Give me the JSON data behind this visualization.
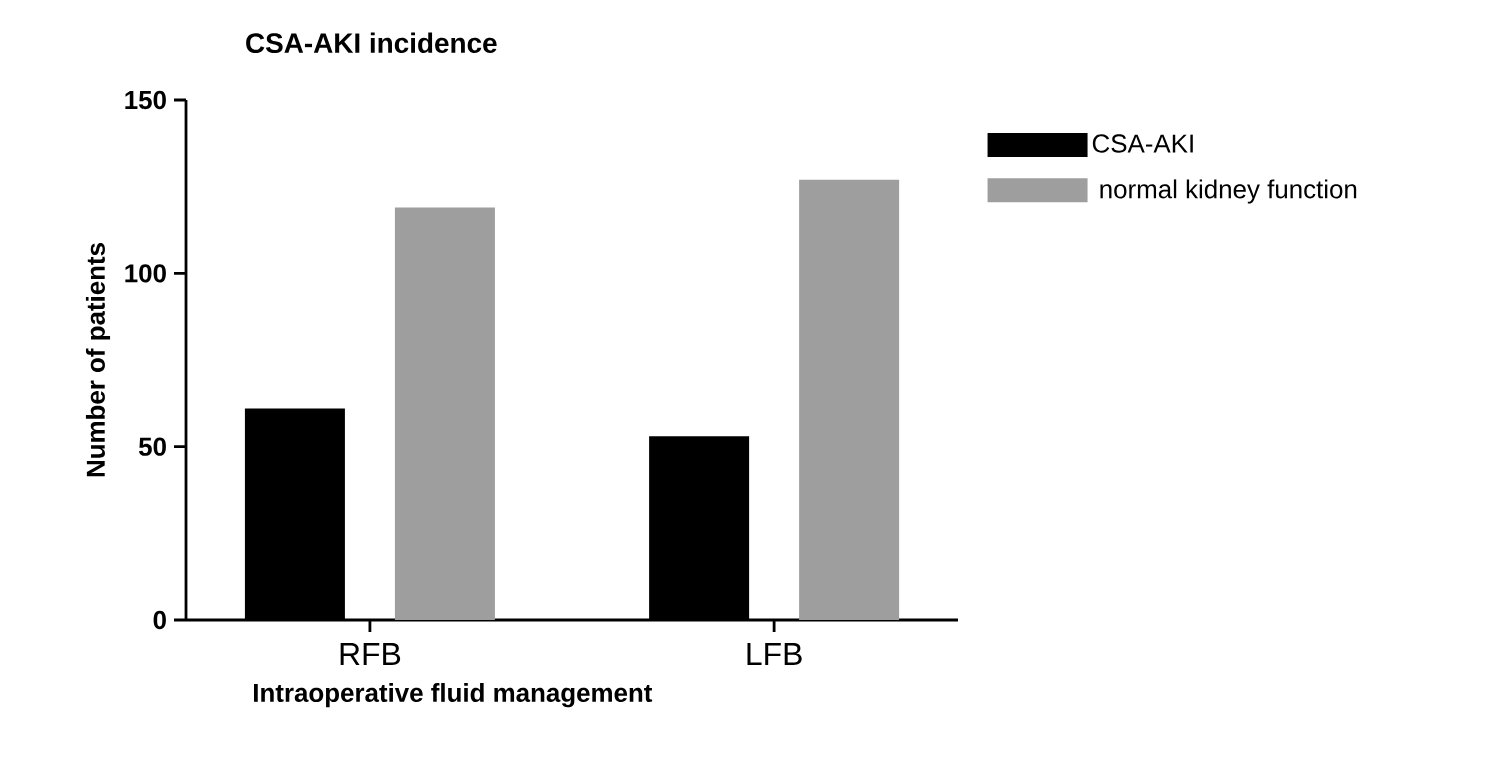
{
  "chart_data": {
    "type": "bar",
    "title": "CSA-AKI incidence",
    "xlabel": "Intraoperative fluid management",
    "ylabel": "Number of patients",
    "categories": [
      "RFB",
      "LFB"
    ],
    "series": [
      {
        "name": "CSA-AKI",
        "color": "#000000",
        "values": [
          61,
          53
        ]
      },
      {
        "name": " normal kidney function",
        "color": "#9e9e9e",
        "values": [
          119,
          127
        ]
      }
    ],
    "ylim": [
      0,
      150
    ],
    "yticks": [
      0,
      50,
      100,
      150
    ],
    "grid": false,
    "legend": "right"
  }
}
